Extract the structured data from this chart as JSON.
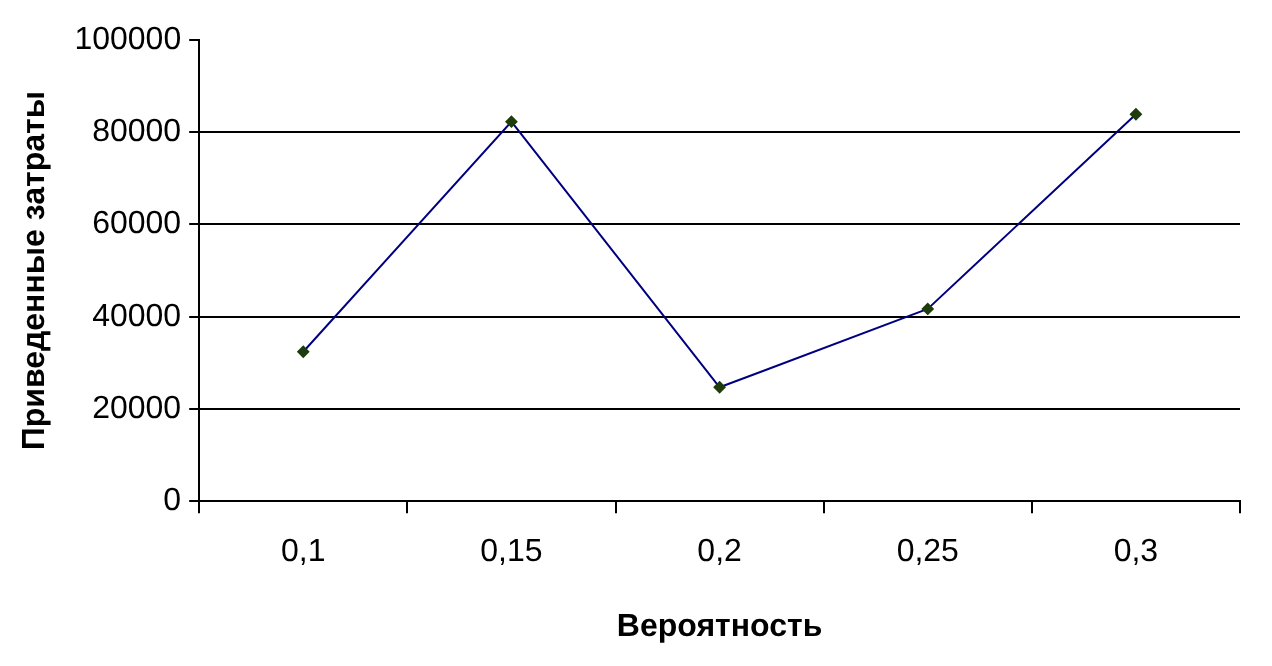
{
  "chart_data": {
    "type": "line",
    "xlabel": "Вероятность",
    "ylabel": "Приведенные затраты",
    "categories": [
      "0,1",
      "0,15",
      "0,2",
      "0,25",
      "0,3"
    ],
    "series": [
      {
        "color": "#000080",
        "values": [
          32400,
          82300,
          24700,
          41700,
          83900
        ]
      }
    ],
    "ylim": [
      0,
      100000
    ],
    "yticks": [
      0,
      20000,
      40000,
      60000,
      80000,
      100000
    ],
    "grid": "y",
    "legend": false,
    "marker": "diamond",
    "line_style": "solid"
  }
}
